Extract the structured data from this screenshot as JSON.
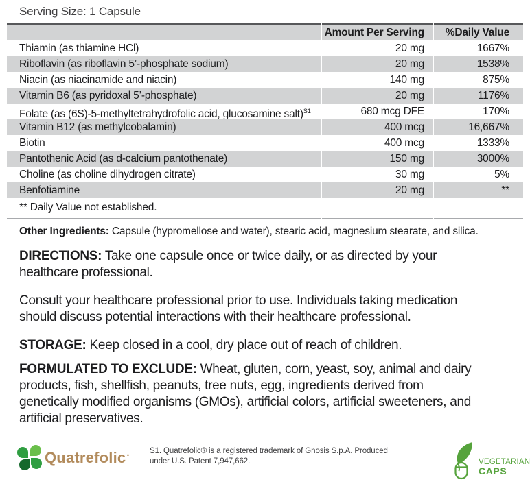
{
  "serving_size": "Serving Size: 1 Capsule",
  "table": {
    "headers": {
      "amount": "Amount Per Serving",
      "daily_value": "%Daily Value"
    },
    "rows": [
      {
        "name": "Thiamin (as thiamine HCl)",
        "amount": "20 mg",
        "dv": "1667%"
      },
      {
        "name": "Riboflavin (as riboflavin 5’-phosphate sodium)",
        "amount": "20 mg",
        "dv": "1538%"
      },
      {
        "name": "Niacin (as niacinamide and niacin)",
        "amount": "140 mg",
        "dv": "875%"
      },
      {
        "name": "Vitamin B6 (as pyridoxal 5’-phosphate)",
        "amount": "20 mg",
        "dv": "1176%"
      },
      {
        "name": "Folate (as (6S)-5-methyltetrahydrofolic acid, glucosamine salt)",
        "sup": "S1",
        "amount": "680 mcg DFE",
        "dv": "170%"
      },
      {
        "name": "Vitamin B12 (as methylcobalamin)",
        "amount": "400 mcg",
        "dv": "16,667%"
      },
      {
        "name": "Biotin",
        "amount": "400 mcg",
        "dv": "1333%"
      },
      {
        "name": "Pantothenic Acid (as d-calcium pantothenate)",
        "amount": "150 mg",
        "dv": "3000%"
      },
      {
        "name": "Choline (as choline dihydrogen citrate)",
        "amount": "30 mg",
        "dv": "5%"
      },
      {
        "name": "Benfotiamine",
        "amount": "20 mg",
        "dv": "**"
      }
    ],
    "footnote": "** Daily Value not established."
  },
  "other_ingredients": {
    "label": "Other Ingredients:",
    "text": "Capsule (hypromellose and water), stearic acid, magnesium stearate, and silica."
  },
  "directions": {
    "label": "DIRECTIONS:",
    "text": "Take one capsule once or twice daily, or as directed by your\nhealthcare professional."
  },
  "consult": "Consult your healthcare professional prior to use. Individuals taking medication\nshould discuss potential interactions with their healthcare professional.",
  "storage": {
    "label": "STORAGE:",
    "text": "Keep closed in a cool, dry place out of reach of children."
  },
  "formulated": {
    "label": "FORMULATED TO EXCLUDE:",
    "text": "Wheat, gluten, corn, yeast, soy, animal and dairy\nproducts, fish, shellfish, peanuts, tree nuts, egg, ingredients derived from\ngenetically modified organisms (GMOs), artificial colors, artificial sweeteners, and\nartificial preservatives."
  },
  "footer": {
    "quatrefolic_wordmark": "Quatrefolic",
    "quatrefolic_note": "S1. Quatrefolic® is a registered trademark of Gnosis S.p.A. Produced\nunder U.S. Patent 7,947,662.",
    "vegetarian_line1": "VEGETARIAN",
    "vegetarian_line2": "CAPS"
  },
  "colors": {
    "row_shade": "#d2d3d4",
    "table_top_border": "#57585a",
    "table_bottom_border": "#a8aaad",
    "text": "#1d1d1f",
    "quatrefolic_tan": "#b28b5c",
    "clover_greens": [
      "#2f9e41",
      "#6abf4b",
      "#15682c"
    ],
    "vegetarian_green": "#56a33c"
  }
}
